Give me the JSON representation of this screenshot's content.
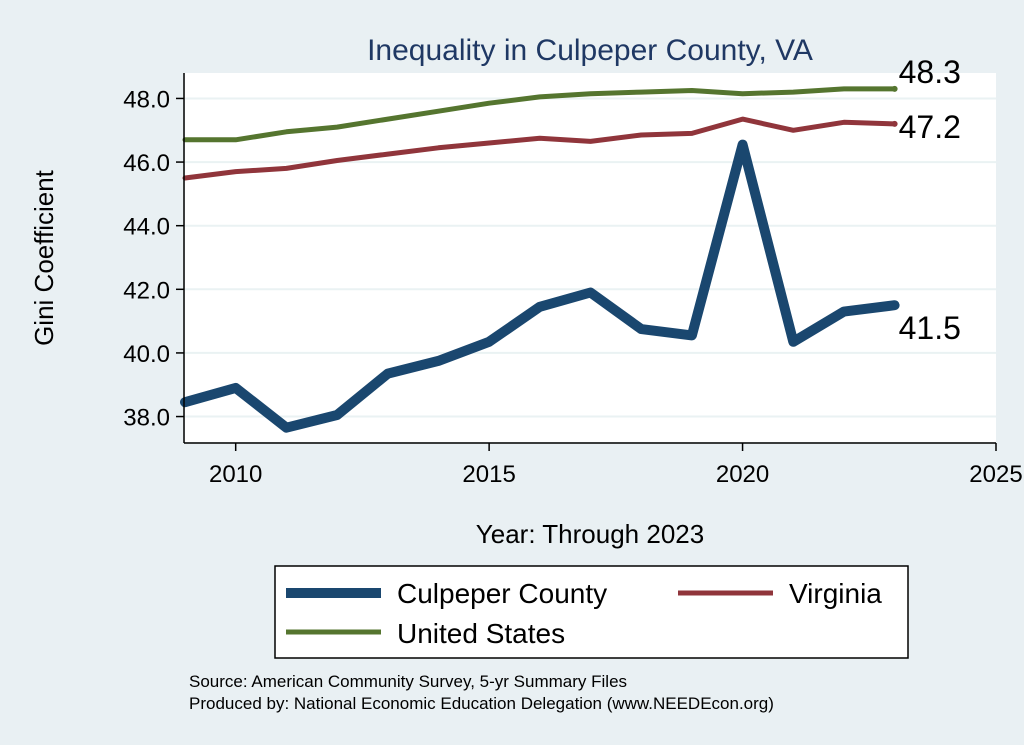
{
  "chart_data": {
    "type": "line",
    "title": "Inequality in Culpeper County, VA",
    "xlabel": "Year: Through 2023",
    "ylabel": "Gini Coefficient",
    "xlim": [
      2009,
      2025
    ],
    "ylim": [
      37.2,
      48.8
    ],
    "x_ticks": [
      2010,
      2015,
      2020,
      2025
    ],
    "y_ticks": [
      38.0,
      40.0,
      42.0,
      44.0,
      46.0,
      48.0
    ],
    "y_tick_labels": [
      "38.0",
      "40.0",
      "42.0",
      "44.0",
      "46.0",
      "48.0"
    ],
    "grid": true,
    "x": [
      2009,
      2010,
      2011,
      2012,
      2013,
      2014,
      2015,
      2016,
      2017,
      2018,
      2019,
      2020,
      2021,
      2022,
      2023
    ],
    "series": [
      {
        "name": "Culpeper County",
        "color": "#1a476f",
        "values": [
          38.45,
          38.9,
          37.65,
          38.05,
          39.35,
          39.75,
          40.35,
          41.45,
          41.9,
          40.75,
          40.55,
          46.55,
          40.35,
          41.3,
          41.5
        ],
        "end_label": "41.5"
      },
      {
        "name": "Virginia",
        "color": "#90353b",
        "values": [
          45.5,
          45.7,
          45.8,
          46.05,
          46.25,
          46.45,
          46.6,
          46.75,
          46.65,
          46.85,
          46.9,
          47.35,
          47.0,
          47.25,
          47.2
        ],
        "end_label": "47.2"
      },
      {
        "name": "United States",
        "color": "#55752f",
        "values": [
          46.7,
          46.7,
          46.95,
          47.1,
          47.35,
          47.6,
          47.85,
          48.05,
          48.15,
          48.2,
          48.25,
          48.15,
          48.2,
          48.3,
          48.3
        ],
        "end_label": "48.3"
      }
    ]
  },
  "legend": {
    "items": [
      {
        "label": "Culpeper County",
        "color": "#1a476f"
      },
      {
        "label": "Virginia",
        "color": "#90353b"
      },
      {
        "label": "United States",
        "color": "#55752f"
      }
    ]
  },
  "source": {
    "line1": "Source: American Community Survey, 5-yr Summary Files",
    "line2": "Produced by: National Economic Education Delegation (www.NEEDEcon.org)"
  }
}
